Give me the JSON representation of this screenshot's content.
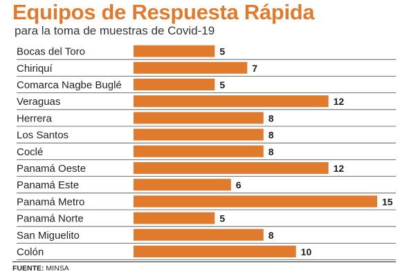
{
  "chart_data": {
    "type": "bar",
    "orientation": "horizontal",
    "title": "Equipos de Respuesta Rápida",
    "subtitle": "para la toma de muestras de Covid-19",
    "categories": [
      "Bocas del Toro",
      "Chiriquí",
      "Comarca Nagbe Buglé",
      "Veraguas",
      "Herrera",
      "Los Santos",
      "Coclé",
      "Panamá Oeste",
      "Panamá Este",
      "Panamá Metro",
      "Panamá Norte",
      "San Miguelito",
      "Colón"
    ],
    "values": [
      5,
      7,
      5,
      12,
      8,
      8,
      8,
      12,
      6,
      15,
      5,
      8,
      10
    ],
    "xlim": [
      0,
      15
    ],
    "grid": false,
    "bar_color": "#e07b2e",
    "separator_color": "#444444"
  },
  "source": {
    "label": "FUENTE:",
    "value": "MINSA"
  }
}
